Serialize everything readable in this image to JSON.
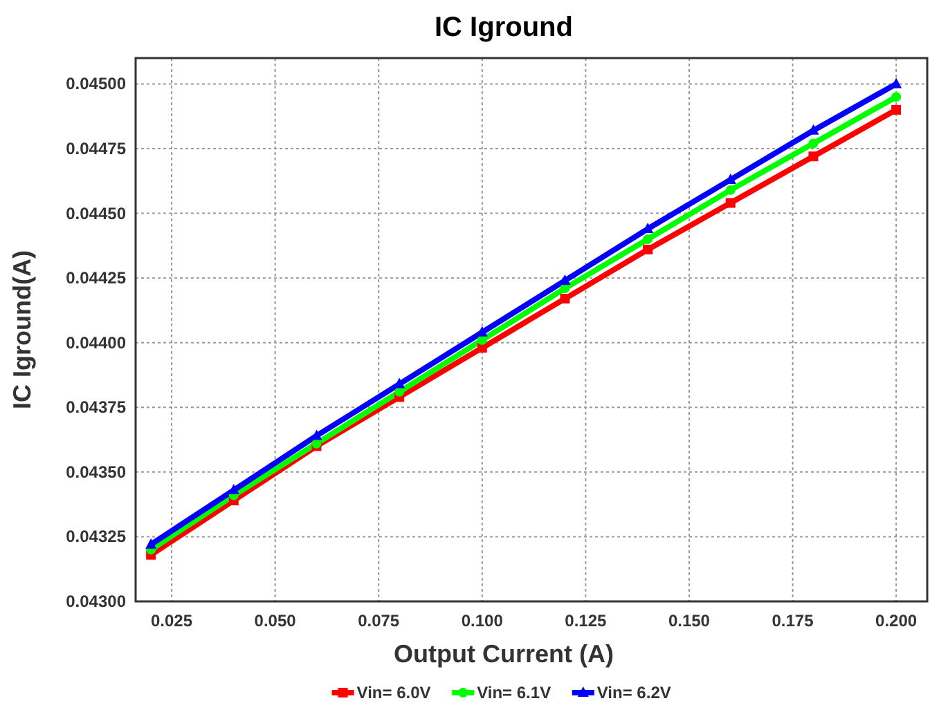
{
  "chart_data": {
    "type": "line",
    "title": "IC Iground",
    "xlabel": "Output Current (A)",
    "ylabel": "IC Iground(A)",
    "x": [
      0.02,
      0.04,
      0.06,
      0.08,
      0.1,
      0.12,
      0.14,
      0.16,
      0.18,
      0.2
    ],
    "series": [
      {
        "name": "Vin= 6.0V",
        "color": "#ff0000",
        "marker": "square",
        "values": [
          0.04318,
          0.04339,
          0.0436,
          0.04379,
          0.04398,
          0.04417,
          0.04436,
          0.04454,
          0.04472,
          0.0449
        ]
      },
      {
        "name": "Vin= 6.1V",
        "color": "#00ff00",
        "marker": "circle",
        "values": [
          0.0432,
          0.04341,
          0.04361,
          0.04381,
          0.04401,
          0.04421,
          0.0444,
          0.04459,
          0.04477,
          0.04495
        ]
      },
      {
        "name": "Vin= 6.2V",
        "color": "#0000ff",
        "marker": "triangle",
        "values": [
          0.04322,
          0.04343,
          0.04364,
          0.04384,
          0.04404,
          0.04424,
          0.04444,
          0.04463,
          0.04482,
          0.045
        ]
      }
    ],
    "xlim": [
      0.0163,
      0.2075
    ],
    "ylim": [
      0.043,
      0.0451
    ],
    "xticks": [
      {
        "value": 0.025,
        "label": "0.025"
      },
      {
        "value": 0.05,
        "label": "0.050"
      },
      {
        "value": 0.075,
        "label": "0.075"
      },
      {
        "value": 0.1,
        "label": "0.100"
      },
      {
        "value": 0.125,
        "label": "0.125"
      },
      {
        "value": 0.15,
        "label": "0.150"
      },
      {
        "value": 0.175,
        "label": "0.175"
      },
      {
        "value": 0.2,
        "label": "0.200"
      }
    ],
    "yticks": [
      {
        "value": 0.043,
        "label": "0.04300"
      },
      {
        "value": 0.04325,
        "label": "0.04325"
      },
      {
        "value": 0.0435,
        "label": "0.04350"
      },
      {
        "value": 0.04375,
        "label": "0.04375"
      },
      {
        "value": 0.044,
        "label": "0.04400"
      },
      {
        "value": 0.04425,
        "label": "0.04425"
      },
      {
        "value": 0.0445,
        "label": "0.04450"
      },
      {
        "value": 0.04475,
        "label": "0.04475"
      },
      {
        "value": 0.045,
        "label": "0.04500"
      }
    ],
    "grid": true,
    "legend": "bottom",
    "line_style": "solid"
  }
}
